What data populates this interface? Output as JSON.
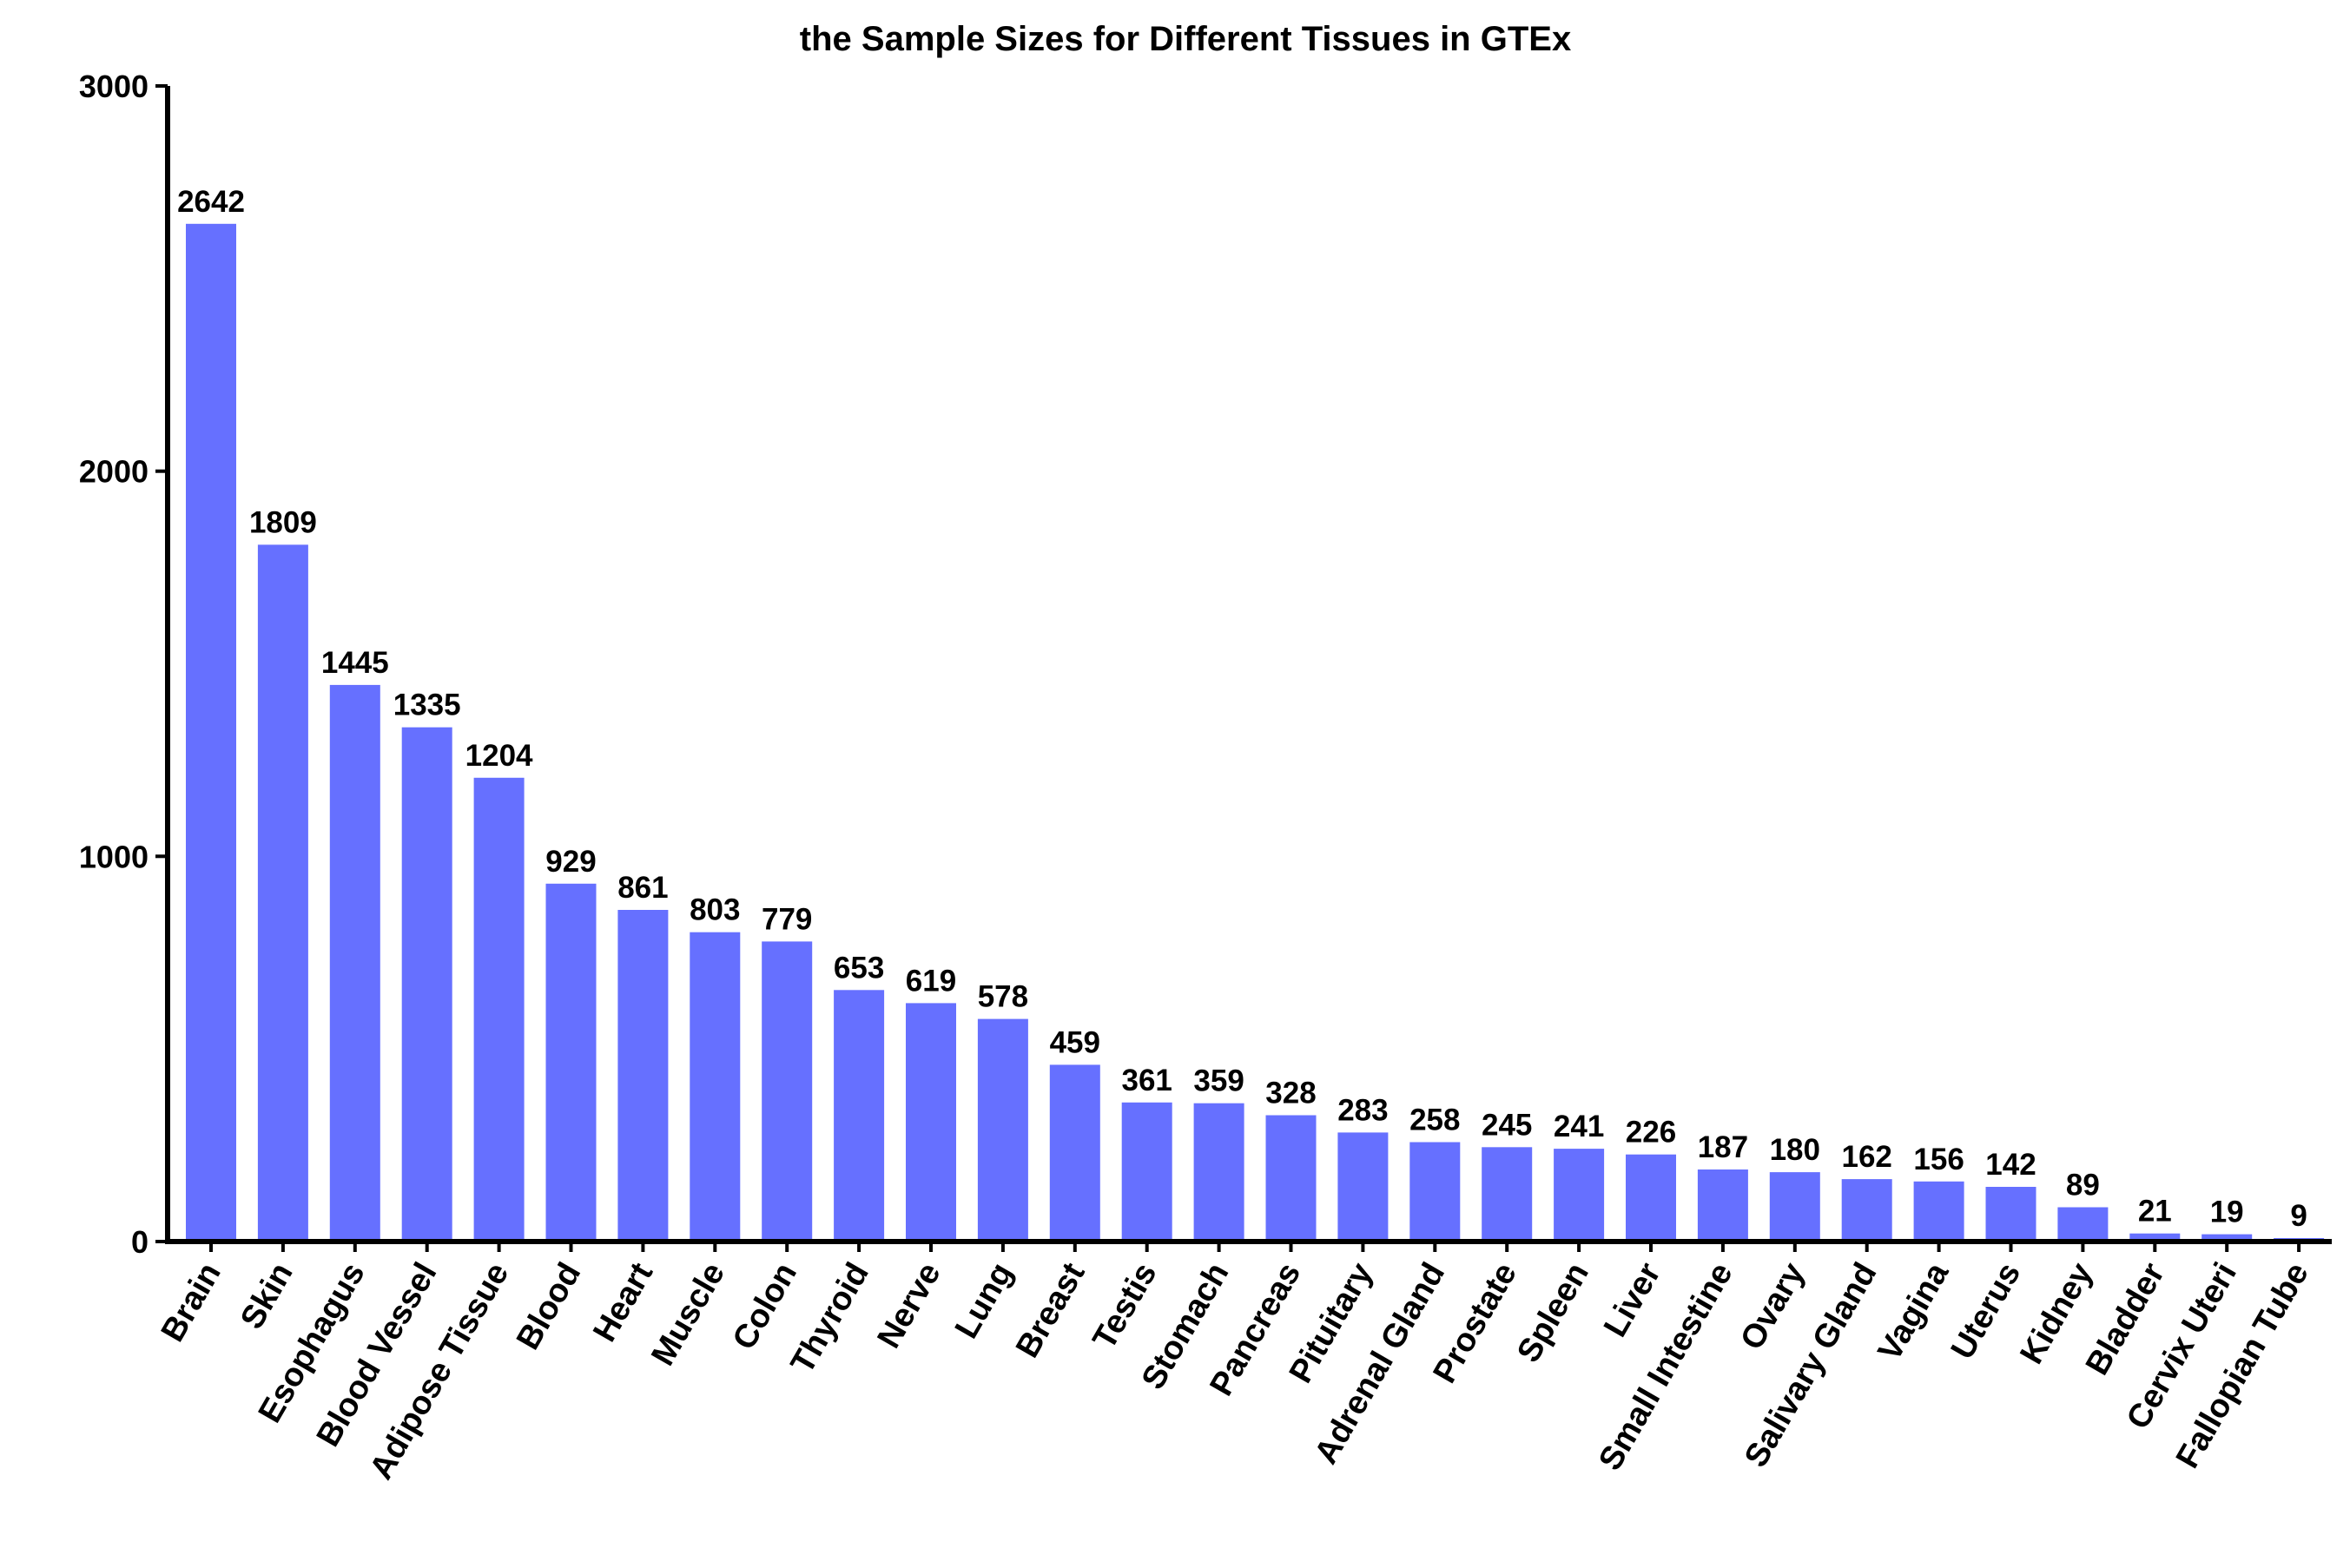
{
  "chart_data": {
    "type": "bar",
    "title": "the Sample Sizes for Different Tissues in GTEx",
    "xlabel": "",
    "ylabel": "",
    "ylim": [
      0,
      3000
    ],
    "yticks": [
      0,
      1000,
      2000,
      3000
    ],
    "grid": false,
    "bar_color": "#6670FF",
    "categories": [
      "Brain",
      "Skin",
      "Esophagus",
      "Blood Vessel",
      "Adipose Tissue",
      "Blood",
      "Heart",
      "Muscle",
      "Colon",
      "Thyroid",
      "Nerve",
      "Lung",
      "Breast",
      "Testis",
      "Stomach",
      "Pancreas",
      "Pituitary",
      "Adrenal Gland",
      "Prostate",
      "Spleen",
      "Liver",
      "Small Intestine",
      "Ovary",
      "Salivary Gland",
      "Vagina",
      "Uterus",
      "Kidney",
      "Bladder",
      "Cervix Uteri",
      "Fallopian Tube"
    ],
    "values": [
      2642,
      1809,
      1445,
      1335,
      1204,
      929,
      861,
      803,
      779,
      653,
      619,
      578,
      459,
      361,
      359,
      328,
      283,
      258,
      245,
      241,
      226,
      187,
      180,
      162,
      156,
      142,
      89,
      21,
      19,
      9
    ]
  }
}
